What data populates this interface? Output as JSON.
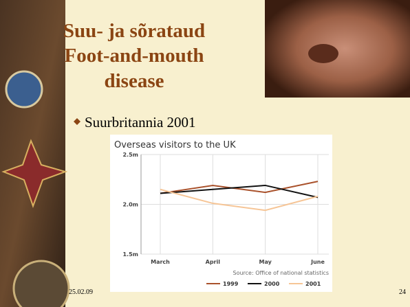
{
  "slide": {
    "title_lines": [
      "Suu- ja sõrataud",
      "Foot-and-mouth",
      "disease"
    ],
    "bullet": "Suurbritannia 2001",
    "date": "25.02.09",
    "page_number": "24"
  },
  "chart_data": {
    "type": "line",
    "title": "Overseas visitors to the UK",
    "source": "Source: Office of national statistics",
    "categories": [
      "March",
      "April",
      "May",
      "June"
    ],
    "series": [
      {
        "name": "1999",
        "color": "#a9512b",
        "values": [
          2.11,
          2.19,
          2.12,
          2.23
        ]
      },
      {
        "name": "2000",
        "color": "#111111",
        "values": [
          2.11,
          2.15,
          2.19,
          2.07
        ]
      },
      {
        "name": "2001",
        "color": "#f6c596",
        "values": [
          2.15,
          2.01,
          1.94,
          2.08
        ]
      }
    ],
    "ylim": [
      1.5,
      2.5
    ],
    "yticks": [
      {
        "value": 1.5,
        "label": "1.5m"
      },
      {
        "value": 2.0,
        "label": "2.0m"
      },
      {
        "value": 2.5,
        "label": "2.5m"
      }
    ],
    "grid": true
  }
}
